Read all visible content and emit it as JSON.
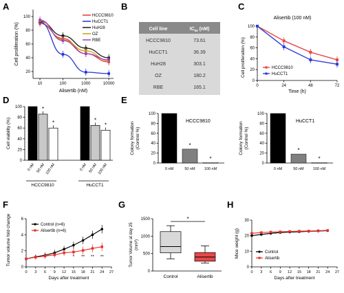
{
  "panel_labels": [
    "A",
    "B",
    "C",
    "D",
    "E",
    "F",
    "G",
    "H"
  ],
  "chart_data": [
    {
      "panel": "A",
      "type": "line",
      "xlabel": "Alisertib (nM)",
      "ylabel": "Cell proliferation (%)",
      "x_scale": "log",
      "x": [
        10,
        100,
        1000,
        10000
      ],
      "x_ticks": [
        "10",
        "100",
        "1000",
        "10000"
      ],
      "y_ticks": [
        20,
        40,
        60,
        80,
        100
      ],
      "ylim": [
        10,
        110
      ],
      "legend_position": "top-right",
      "series": [
        {
          "name": "HCCC9810",
          "color": "#e8332e",
          "values": [
            90,
            68,
            46,
            34
          ]
        },
        {
          "name": "HuCCT1",
          "color": "#2133d6",
          "values": [
            92,
            45,
            19,
            17
          ]
        },
        {
          "name": "HuH28",
          "color": "#1a1a1a",
          "values": [
            93,
            72,
            54,
            40
          ]
        },
        {
          "name": "OZ",
          "color": "#c8a000",
          "values": [
            94,
            66,
            50,
            36
          ]
        },
        {
          "name": "RBE",
          "color": "#a040c0",
          "values": [
            95,
            65,
            46,
            37
          ]
        }
      ]
    },
    {
      "panel": "B",
      "type": "table",
      "columns": [
        "Cell line",
        "IC50 (nM)"
      ],
      "header_ic": "IC",
      "header_sub": "50",
      "header_unit": " (nM)",
      "rows": [
        [
          "HCCC9810",
          "73.61"
        ],
        [
          "HuCCT1",
          "36.39"
        ],
        [
          "HuH28",
          "303.1"
        ],
        [
          "OZ",
          "180.2"
        ],
        [
          "RBE",
          "165.1"
        ]
      ]
    },
    {
      "panel": "C",
      "type": "line",
      "title": "Alisertib (100 nM)",
      "xlabel": "Time (h)",
      "ylabel": "Cell proliferation (%)",
      "x": [
        0,
        24,
        48,
        72
      ],
      "xlim": [
        0,
        72
      ],
      "ylim": [
        0,
        100
      ],
      "x_ticks": [
        0,
        24,
        48,
        72
      ],
      "y_ticks": [
        0,
        20,
        40,
        60,
        80,
        100
      ],
      "legend_position": "bottom-left",
      "series": [
        {
          "name": "HCCC9810",
          "color": "#e84848",
          "values": [
            100,
            73,
            52,
            38
          ]
        },
        {
          "name": "HuCCT1",
          "color": "#2f3fd8",
          "values": [
            100,
            62,
            38,
            30
          ]
        }
      ]
    },
    {
      "panel": "D",
      "type": "bar",
      "ylabel": "Cell viability (%)",
      "ylim": [
        0,
        100
      ],
      "y_ticks": [
        0,
        20,
        40,
        60,
        80,
        100
      ],
      "groups": [
        {
          "name": "HCCC9810",
          "categories": [
            "0 nM",
            "50 nM",
            "100 nM"
          ],
          "values": [
            100,
            86,
            60
          ],
          "colors": [
            "#000000",
            "#c8c8c8",
            "#ffffff"
          ],
          "sig": [
            "",
            "*",
            "*"
          ]
        },
        {
          "name": "HuCCT1",
          "categories": [
            "0 nM",
            "50 nM",
            "100 nM"
          ],
          "values": [
            100,
            65,
            56
          ],
          "colors": [
            "#000000",
            "#c8c8c8",
            "#ffffff"
          ],
          "sig": [
            "",
            "*",
            "*"
          ]
        }
      ]
    },
    {
      "panel": "E1",
      "type": "bar",
      "annotation": "HCCC9810",
      "ylabel_line1": "Colony formation",
      "ylabel_line2": "(Control %)",
      "categories": [
        "0 nM",
        "50 nM",
        "100 nM"
      ],
      "values": [
        100,
        28,
        1
      ],
      "colors": [
        "#000000",
        "#808080",
        "#d0d0d0"
      ],
      "sig": [
        "",
        "*",
        "*"
      ],
      "ylim": [
        0,
        100
      ],
      "y_ticks": [
        0,
        20,
        40,
        60,
        80,
        100
      ]
    },
    {
      "panel": "E2",
      "type": "bar",
      "annotation": "HuCCT1",
      "ylabel_line1": "Colony formation",
      "ylabel_line2": "(Control %)",
      "categories": [
        "0 nM",
        "50 nM",
        "100 nM"
      ],
      "values": [
        100,
        18,
        1
      ],
      "colors": [
        "#000000",
        "#808080",
        "#d0d0d0"
      ],
      "sig": [
        "",
        "*",
        "*"
      ],
      "ylim": [
        0,
        100
      ],
      "y_ticks": [
        0,
        20,
        40,
        60,
        80,
        100
      ]
    },
    {
      "panel": "F",
      "type": "line",
      "xlabel": "Days after treatment",
      "ylabel": "Tumor volume fold change",
      "x": [
        0,
        3,
        6,
        9,
        12,
        15,
        18,
        21,
        24
      ],
      "xlim": [
        0,
        27
      ],
      "ylim": [
        0,
        6
      ],
      "x_ticks": [
        0,
        3,
        6,
        9,
        12,
        15,
        18,
        21,
        24,
        27
      ],
      "y_ticks": [
        0,
        2,
        4,
        6
      ],
      "legend_position": "top-left",
      "series": [
        {
          "name": "Control (n=6)",
          "color": "#000000",
          "values": [
            1.0,
            1.25,
            1.45,
            1.75,
            2.2,
            2.7,
            3.3,
            4.0,
            4.7
          ]
        },
        {
          "name": "Alisertib (n=6)",
          "color": "#e8332e",
          "values": [
            1.0,
            1.2,
            1.35,
            1.5,
            1.75,
            1.85,
            2.05,
            2.3,
            2.5
          ]
        }
      ],
      "sig_labels": [
        {
          "x": 15,
          "label": "*"
        },
        {
          "x": 18,
          "label": "**"
        },
        {
          "x": 21,
          "label": "**"
        },
        {
          "x": 24,
          "label": "**"
        }
      ]
    },
    {
      "panel": "G",
      "type": "box",
      "ylabel_line1": "Tumor Volume at day 25",
      "ylabel_line2": "(mm³)",
      "categories": [
        "Control",
        "Alisertib"
      ],
      "ylim": [
        0,
        1500
      ],
      "y_ticks": [
        0,
        500,
        1000,
        1500
      ],
      "boxes": [
        {
          "name": "Control",
          "color": "#d8d8d8",
          "min": 350,
          "q1": 520,
          "median": 700,
          "q3": 1130,
          "max": 1300
        },
        {
          "name": "Alisertib",
          "color": "#e84848",
          "min": 230,
          "q1": 280,
          "median": 400,
          "q3": 530,
          "max": 720
        }
      ],
      "sig": "*"
    },
    {
      "panel": "H",
      "type": "line",
      "xlabel": "Days after treatment",
      "ylabel": "Mice weight (g)",
      "x": [
        0,
        3,
        6,
        9,
        12,
        15,
        18,
        21,
        24
      ],
      "xlim": [
        0,
        27
      ],
      "ylim": [
        0,
        30
      ],
      "x_ticks": [
        0,
        3,
        6,
        9,
        12,
        15,
        18,
        21,
        24,
        27
      ],
      "y_ticks": [
        0,
        10,
        20,
        30
      ],
      "legend_position": "bottom-left",
      "series": [
        {
          "name": "Control",
          "color": "#000000",
          "values": [
            20.0,
            20.8,
            21.5,
            22.0,
            22.3,
            22.5,
            22.8,
            23.0,
            23.2
          ]
        },
        {
          "name": "Alisertib",
          "color": "#e8332e",
          "values": [
            21.5,
            22.0,
            22.3,
            22.5,
            22.7,
            22.9,
            23.0,
            23.2,
            23.4
          ]
        }
      ]
    }
  ]
}
